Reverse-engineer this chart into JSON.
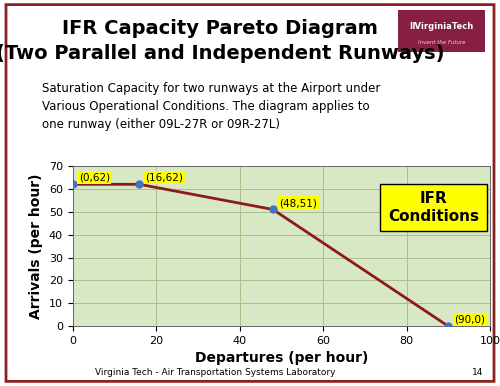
{
  "title_line1": "IFR Capacity Pareto Diagram",
  "title_line2": "(Two Parallel and Independent Runways)",
  "subtitle": "Saturation Capacity for two runways at the Airport under\nVarious Operational Conditions. The diagram applies to\none runway (either 09L-27R or 09R-27L)",
  "xlabel": "Departures (per hour)",
  "ylabel": "Arrivals (per hour)",
  "footer": "Virginia Tech - Air Transportation Systems Laboratory",
  "page_number": "14",
  "x_data": [
    0,
    16,
    48,
    90
  ],
  "y_data": [
    62,
    62,
    51,
    0
  ],
  "point_labels": [
    "(0,62)",
    "(16,62)",
    "(48,51)",
    "(90,0)"
  ],
  "xlim": [
    0,
    100
  ],
  "ylim": [
    0,
    70
  ],
  "xticks": [
    0,
    20,
    40,
    60,
    80,
    100
  ],
  "yticks": [
    0,
    10,
    20,
    30,
    40,
    50,
    60,
    70
  ],
  "line_color": "#8B1A1A",
  "marker_color": "#4472C4",
  "marker_size": 5,
  "plot_bg_color": "#D9E8C4",
  "outer_bg_color": "#FFFFFF",
  "grid_color": "#AABF8A",
  "title_fontsize": 14,
  "subtitle_fontsize": 8.5,
  "axis_label_fontsize": 10,
  "tick_fontsize": 8,
  "annotation_fontsize": 7.5,
  "ifr_label": "IFR\nConditions",
  "border_color": "#8B2020",
  "vt_logo_color": "#861F41",
  "ifr_fontsize": 11
}
